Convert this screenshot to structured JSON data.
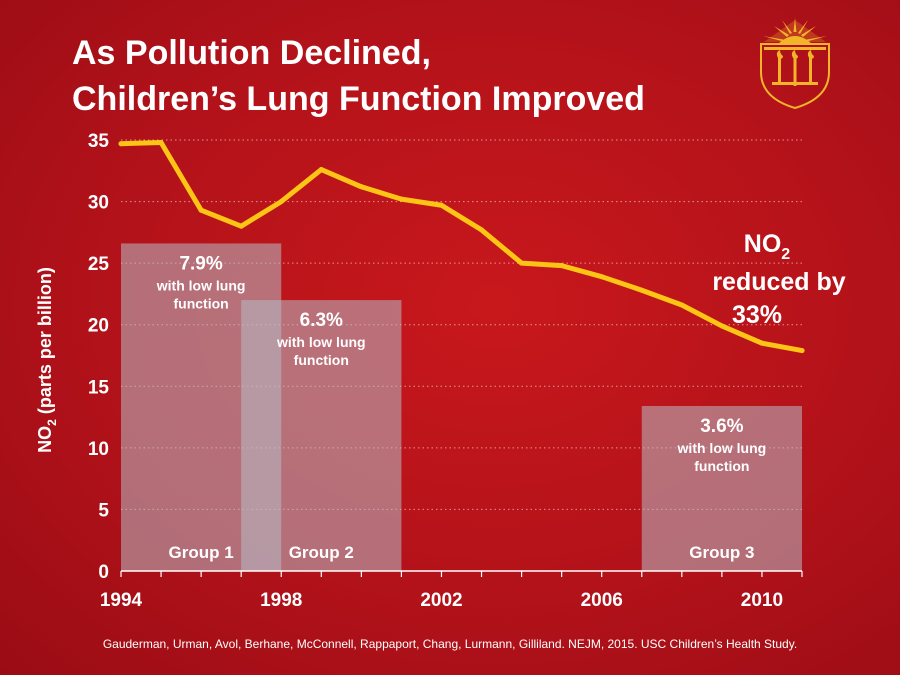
{
  "title": {
    "line1": "As Pollution Declined,",
    "line2": "Children’s Lung Function Improved"
  },
  "colors": {
    "background": "#b3121a",
    "line": "#fcc515",
    "bar": "#b6bcc6",
    "text": "#ffffff",
    "seal": "#f2b52a"
  },
  "logo": {
    "name": "usc-seal-icon"
  },
  "citation": "Gauderman, Urman, Avol, Berhane, McConnell, Rappaport, Chang, Lurmann, Gilliland. NEJM, 2015. USC Children’s Health Study.",
  "chart_data": {
    "type": "line",
    "title": "As Pollution Declined, Children’s Lung Function Improved",
    "ylabel": "NO2 (parts per billion)",
    "ylabel_main": "NO",
    "ylabel_sub": "2",
    "ylabel_rest": " (parts per billion)",
    "xlabel": "",
    "xlim": [
      1994,
      2011
    ],
    "ylim": [
      0,
      35
    ],
    "grid": true,
    "x_ticks": [
      1994,
      1998,
      2002,
      2006,
      2010
    ],
    "y_ticks": [
      0,
      5,
      10,
      15,
      20,
      25,
      30,
      35
    ],
    "series": [
      {
        "name": "NO2",
        "x": [
          1994,
          1995,
          1996,
          1997,
          1998,
          1999,
          2000,
          2001,
          2002,
          2003,
          2004,
          2005,
          2006,
          2007,
          2008,
          2009,
          2010,
          2011
        ],
        "values": [
          34.7,
          34.8,
          29.3,
          28.0,
          30.0,
          32.6,
          31.2,
          30.2,
          29.7,
          27.7,
          25.0,
          24.8,
          23.9,
          22.8,
          21.6,
          19.9,
          18.5,
          17.9
        ]
      }
    ],
    "groups": [
      {
        "label": "Group 1",
        "x_start": 1994,
        "x_end": 1998,
        "height": 26.6,
        "value": "7.9%",
        "description_line1": "with low lung",
        "description_line2": "function"
      },
      {
        "label": "Group 2",
        "x_start": 1997,
        "x_end": 2001,
        "height": 22.0,
        "value": "6.3%",
        "description_line1": "with low lung",
        "description_line2": "function"
      },
      {
        "label": "Group 3",
        "x_start": 2007,
        "x_end": 2011,
        "height": 13.4,
        "value": "3.6%",
        "description_line1": "with low lung",
        "description_line2": "function"
      }
    ],
    "annotation": {
      "line1_main": "NO",
      "line1_sub": "2",
      "line2": "reduced by",
      "line3": "33%"
    }
  }
}
